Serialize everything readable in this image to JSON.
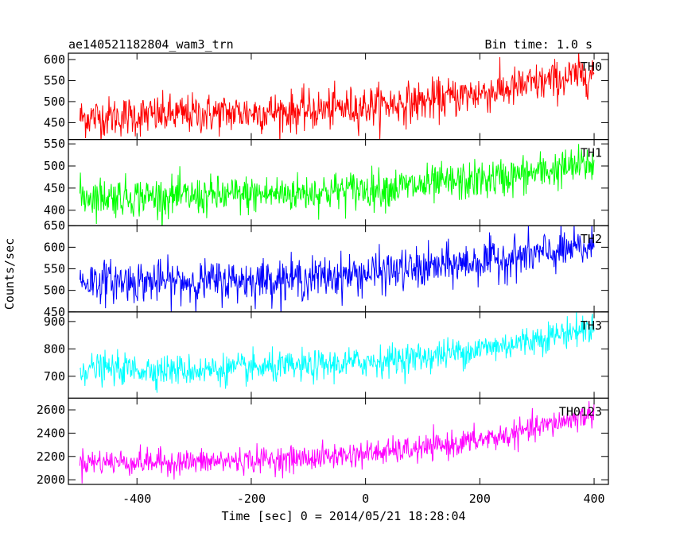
{
  "header": {
    "title": "ae140521182804_wam3_trn",
    "bin_time": "Bin time: 1.0 s"
  },
  "axes": {
    "ylabel": "Counts/sec",
    "xlabel": "Time [sec] 0 = 2014/05/21 18:28:04"
  },
  "chart_data": {
    "type": "line",
    "x_range": [
      -500,
      400
    ],
    "xlim": [
      -520,
      425
    ],
    "x_ticks": [
      -400,
      -200,
      0,
      200,
      400
    ],
    "bin_time_s": 1.0,
    "grid": false,
    "panels": [
      {
        "name": "TH0",
        "color": "#ff0000",
        "ylim": [
          410,
          615
        ],
        "y_ticks": [
          450,
          500,
          550,
          600
        ],
        "trend": [
          [
            -500,
            462
          ],
          [
            -300,
            470
          ],
          [
            -100,
            478
          ],
          [
            100,
            500
          ],
          [
            250,
            530
          ],
          [
            400,
            568
          ]
        ],
        "noise_sd": 24
      },
      {
        "name": "TH1",
        "color": "#00ff00",
        "ylim": [
          365,
          560
        ],
        "y_ticks": [
          400,
          450,
          500,
          550
        ],
        "trend": [
          [
            -500,
            432
          ],
          [
            -300,
            430
          ],
          [
            -100,
            440
          ],
          [
            100,
            455
          ],
          [
            250,
            475
          ],
          [
            400,
            505
          ]
        ],
        "noise_sd": 22
      },
      {
        "name": "TH2",
        "color": "#0000ff",
        "ylim": [
          450,
          650
        ],
        "y_ticks": [
          450,
          500,
          550,
          600,
          650
        ],
        "trend": [
          [
            -500,
            522
          ],
          [
            -300,
            520
          ],
          [
            -100,
            528
          ],
          [
            100,
            550
          ],
          [
            250,
            575
          ],
          [
            400,
            600
          ]
        ],
        "noise_sd": 24
      },
      {
        "name": "TH3",
        "color": "#00ffff",
        "ylim": [
          620,
          935
        ],
        "y_ticks": [
          700,
          800,
          900
        ],
        "trend": [
          [
            -500,
            728
          ],
          [
            -300,
            722
          ],
          [
            -100,
            735
          ],
          [
            100,
            770
          ],
          [
            250,
            815
          ],
          [
            400,
            880
          ]
        ],
        "noise_sd": 28
      },
      {
        "name": "TH0123",
        "color": "#ff00ff",
        "ylim": [
          1960,
          2700
        ],
        "y_ticks": [
          2000,
          2200,
          2400,
          2600
        ],
        "trend": [
          [
            -500,
            2155
          ],
          [
            -300,
            2150
          ],
          [
            -100,
            2185
          ],
          [
            100,
            2265
          ],
          [
            250,
            2380
          ],
          [
            400,
            2570
          ]
        ],
        "noise_sd": 55
      }
    ]
  }
}
